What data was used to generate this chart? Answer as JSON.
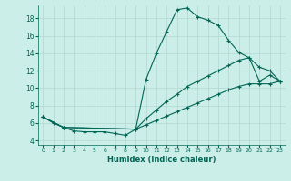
{
  "xlabel": "Humidex (Indice chaleur)",
  "background_color": "#cceee8",
  "line_color": "#006655",
  "xlim": [
    -0.5,
    23.5
  ],
  "ylim": [
    3.5,
    19.5
  ],
  "xticks": [
    0,
    1,
    2,
    3,
    4,
    5,
    6,
    7,
    8,
    9,
    10,
    11,
    12,
    13,
    14,
    15,
    16,
    17,
    18,
    19,
    20,
    21,
    22,
    23
  ],
  "yticks": [
    4,
    6,
    8,
    10,
    12,
    14,
    16,
    18
  ],
  "grid_color": "#b0d8d0",
  "curve1_x": [
    0,
    1,
    2,
    3,
    4,
    5,
    6,
    7,
    8,
    9,
    10,
    11,
    12,
    13,
    14,
    15,
    16,
    17,
    18,
    19,
    20,
    21,
    22,
    23
  ],
  "curve1_y": [
    6.7,
    6.0,
    5.5,
    5.1,
    5.0,
    5.0,
    5.0,
    4.8,
    4.6,
    5.3,
    11.0,
    14.0,
    16.5,
    19.0,
    19.2,
    18.2,
    17.8,
    17.2,
    15.5,
    14.1,
    13.5,
    12.4,
    12.0,
    10.8
  ],
  "curve2_x": [
    0,
    2,
    9,
    10,
    11,
    12,
    13,
    14,
    15,
    16,
    17,
    18,
    19,
    20,
    21,
    22,
    23
  ],
  "curve2_y": [
    6.7,
    5.5,
    5.3,
    6.5,
    7.5,
    8.5,
    9.3,
    10.2,
    10.8,
    11.4,
    12.0,
    12.6,
    13.2,
    13.5,
    10.8,
    11.5,
    10.8
  ],
  "curve3_x": [
    0,
    2,
    9,
    10,
    11,
    12,
    13,
    14,
    15,
    16,
    17,
    18,
    19,
    20,
    21,
    22,
    23
  ],
  "curve3_y": [
    6.7,
    5.5,
    5.3,
    5.8,
    6.3,
    6.8,
    7.3,
    7.8,
    8.3,
    8.8,
    9.3,
    9.8,
    10.2,
    10.5,
    10.5,
    10.5,
    10.8
  ]
}
